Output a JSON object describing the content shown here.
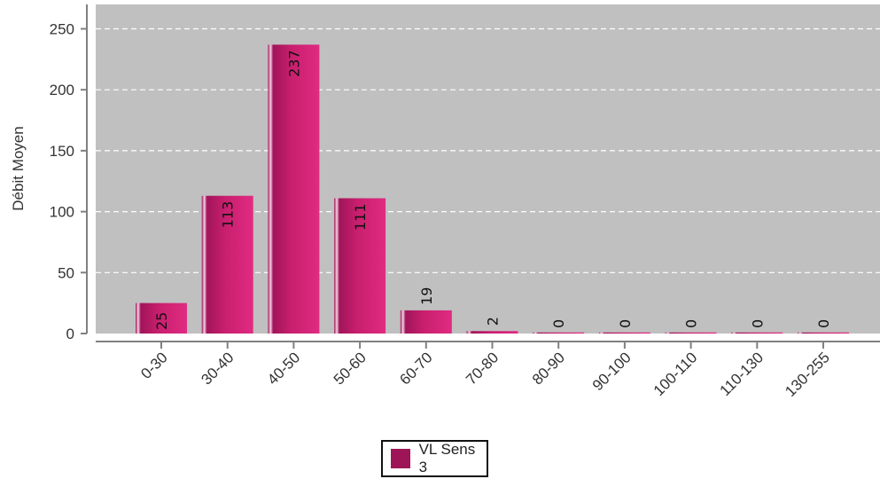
{
  "colors": {
    "plot_background": "#c0c0c0",
    "bar": "#c61f6b",
    "bar_dark": "#9e1557",
    "bar_highlight": "#f7d2e4",
    "grid": "#ffffff",
    "axis": "#808080"
  },
  "legend": {
    "label": "VL Sens 3"
  },
  "chart_data": {
    "type": "bar",
    "title": "",
    "xlabel": "",
    "ylabel": "Débit Moyen",
    "categories": [
      "0-30",
      "30-40",
      "40-50",
      "50-60",
      "60-70",
      "70-80",
      "80-90",
      "90-100",
      "100-110",
      "110-130",
      "130-255"
    ],
    "series": [
      {
        "name": "VL Sens 3",
        "values": [
          25,
          113,
          237,
          111,
          19,
          2,
          0,
          0,
          0,
          0,
          0
        ]
      }
    ],
    "data_labels": [
      "25",
      "113",
      "237",
      "111",
      "19",
      "2",
      "0",
      "0",
      "0",
      "0",
      "0"
    ],
    "ylim": [
      0,
      270
    ],
    "yticks": [
      0,
      50,
      100,
      150,
      200,
      250
    ],
    "grid": true,
    "legend_position": "bottom-center"
  }
}
